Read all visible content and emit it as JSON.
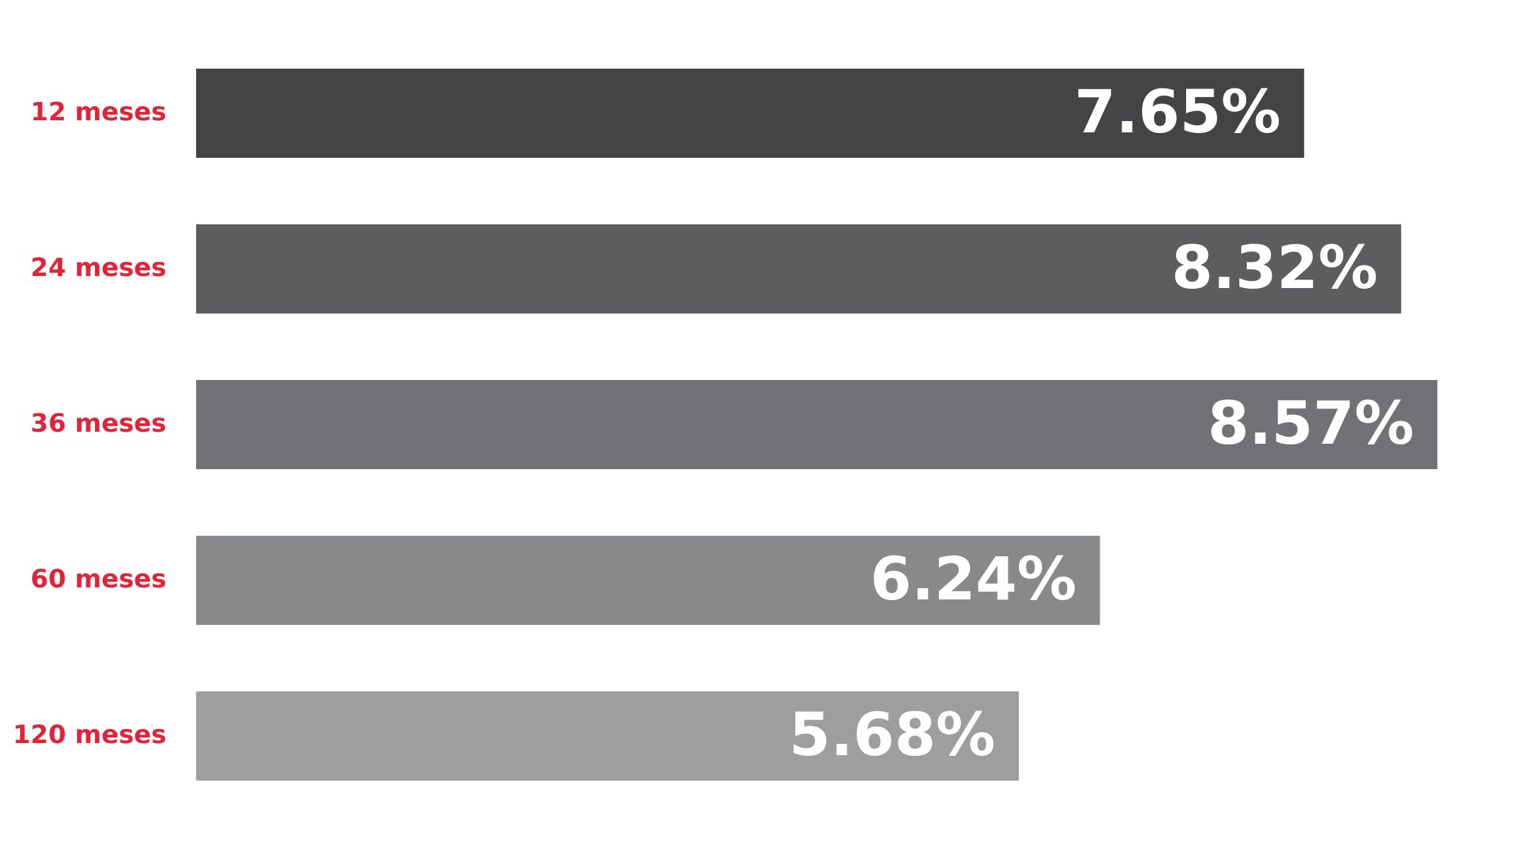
{
  "chart_data": {
    "type": "barh",
    "categories": [
      "12 meses",
      "24 meses",
      "36 meses",
      "60 meses",
      "120 meses"
    ],
    "values": [
      7.65,
      8.32,
      8.57,
      6.24,
      5.68
    ],
    "value_labels": [
      "7.65%",
      "8.32%",
      "8.57%",
      "6.24%",
      "5.68%"
    ],
    "colors": [
      "#444446",
      "#5d5d60",
      "#727276",
      "#88898b",
      "#9d9ea0"
    ]
  }
}
